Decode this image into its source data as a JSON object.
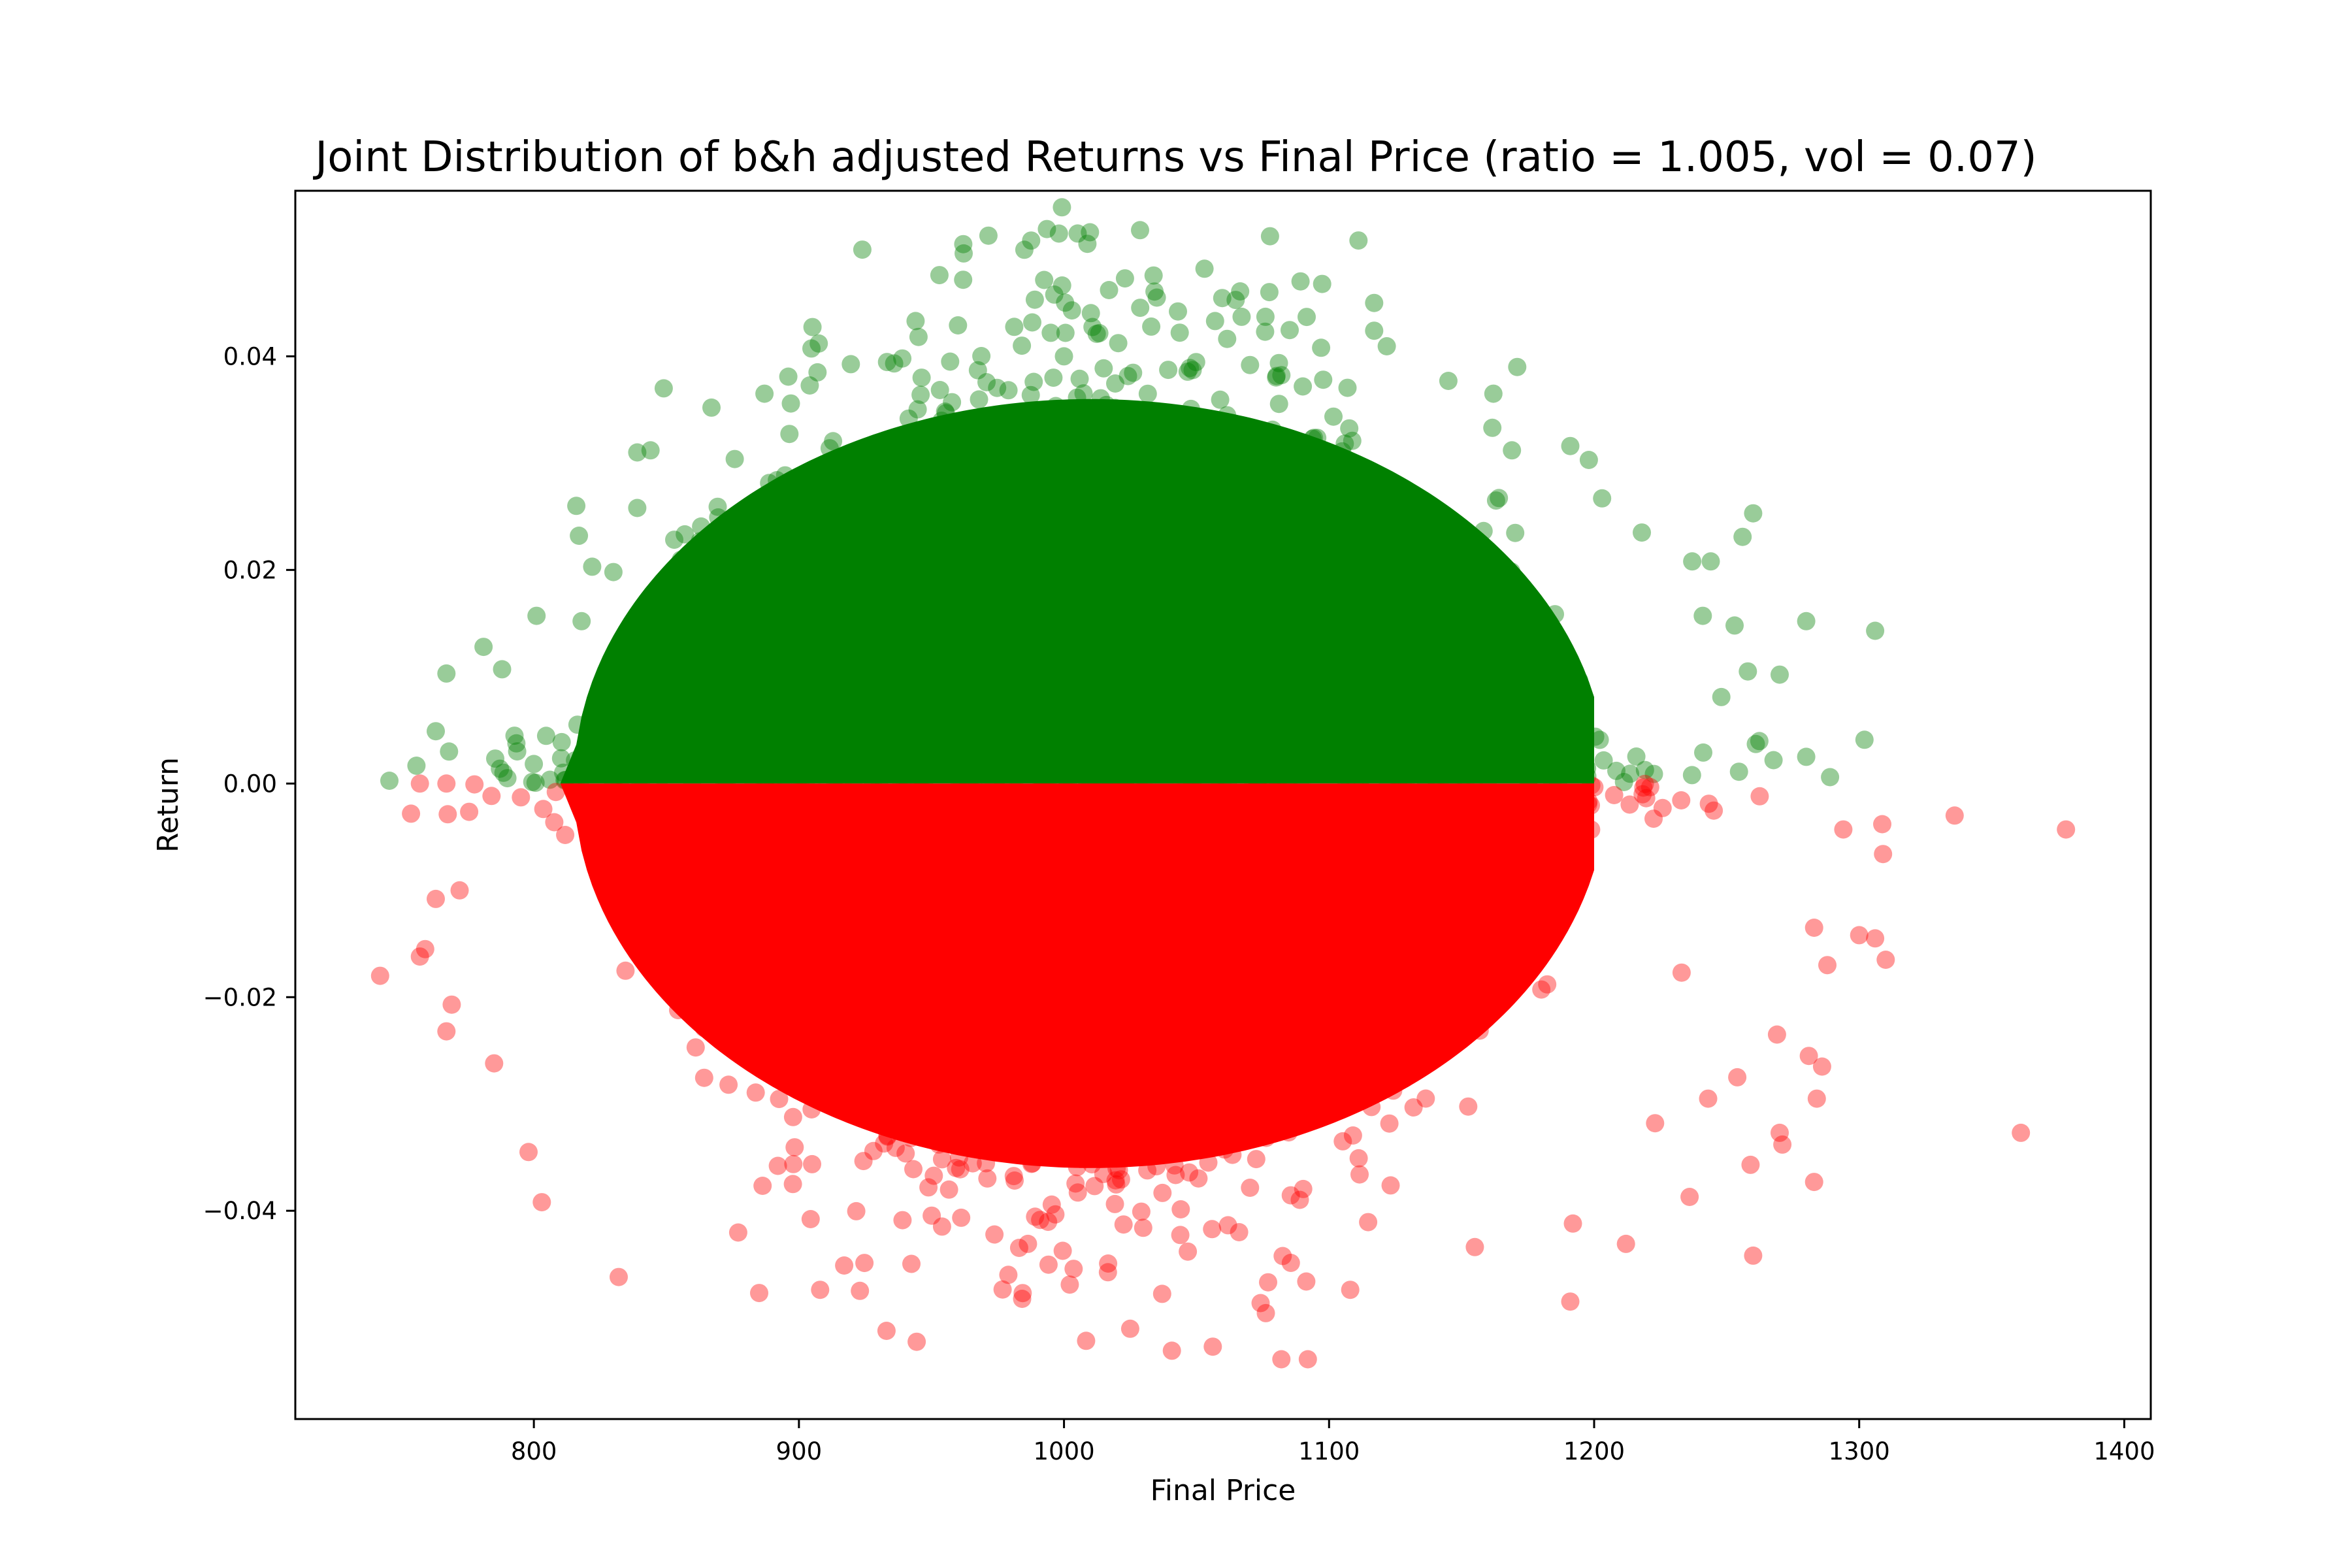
{
  "chart_data": {
    "type": "scatter",
    "title": "Joint Distribution of b&h adjusted Returns vs Final Price (ratio = 1.005, vol = 0.07)",
    "xlabel": "Final Price",
    "ylabel": "Return",
    "xlim": [
      710,
      1410
    ],
    "ylim": [
      -0.0595,
      0.0555
    ],
    "x_ticks": [
      800,
      900,
      1000,
      1100,
      1200,
      1300,
      1400
    ],
    "x_tick_labels": [
      "800",
      "900",
      "1000",
      "1100",
      "1200",
      "1300",
      "1400"
    ],
    "y_ticks": [
      -0.04,
      -0.02,
      0.0,
      0.02,
      0.04
    ],
    "y_tick_labels": [
      "−0.04",
      "−0.02",
      "0.00",
      "0.02",
      "0.04"
    ],
    "grid": false,
    "legend": "none",
    "marker_alpha": 0.4,
    "distribution": {
      "price_center": 1010,
      "price_sd": 80,
      "return_spread": 0.02,
      "positive_color": "#008000",
      "negative_color": "#ff0000"
    },
    "series": [
      {
        "color": "#008000",
        "points": [
          [
            962,
            0.0505
          ],
          [
            1053,
            0.0482
          ],
          [
            953,
            0.0476
          ],
          [
            1023,
            0.0473
          ],
          [
            1017,
            0.0462
          ],
          [
            1035,
            0.0455
          ],
          [
            989,
            0.0453
          ],
          [
            1117,
            0.045
          ],
          [
            1003,
            0.0443
          ],
          [
            1043,
            0.0442
          ],
          [
            1067,
            0.0437
          ],
          [
            1076,
            0.0437
          ],
          [
            944,
            0.0433
          ],
          [
            1057,
            0.0433
          ],
          [
            960,
            0.0429
          ],
          [
            1117,
            0.0424
          ],
          [
            995,
            0.0422
          ],
          [
            1097,
            0.0408
          ],
          [
            939,
            0.0398
          ],
          [
            1171,
            0.039
          ],
          [
            907,
            0.0385
          ],
          [
            896,
            0.0381
          ],
          [
            1145,
            0.0377
          ],
          [
            849,
            0.037
          ],
          [
            867,
            0.0352
          ],
          [
            887,
            0.0365
          ],
          [
            1162,
            0.0365
          ],
          [
            839,
            0.031
          ],
          [
            844,
            0.0312
          ],
          [
            1169,
            0.0312
          ],
          [
            1191,
            0.0316
          ],
          [
            1198,
            0.0303
          ],
          [
            816,
            0.026
          ],
          [
            839,
            0.0258
          ],
          [
            1163,
            0.0265
          ],
          [
            1203,
            0.0267
          ],
          [
            1260,
            0.0253
          ],
          [
            1256,
            0.0231
          ],
          [
            1218,
            0.0235
          ],
          [
            817,
            0.0232
          ],
          [
            822,
            0.0203
          ],
          [
            830,
            0.0198
          ],
          [
            1244,
            0.0208
          ],
          [
            1237,
            0.0208
          ],
          [
            781,
            0.0128
          ],
          [
            788,
            0.0107
          ],
          [
            767,
            0.0103
          ],
          [
            801,
            0.0157
          ],
          [
            818,
            0.0152
          ],
          [
            1280,
            0.0152
          ],
          [
            1306,
            0.0143
          ],
          [
            1241,
            0.0157
          ],
          [
            1253,
            0.0148
          ],
          [
            1270,
            0.0102
          ],
          [
            1258,
            0.0105
          ],
          [
            1302,
            0.0041
          ],
          [
            1289,
            0.0006
          ],
          [
            763,
            0.0049
          ],
          [
            768,
            0.003
          ],
          [
            790,
            0.0005
          ],
          [
            1280,
            0.0025
          ],
          [
            1261,
            0.0037
          ],
          [
            1248,
            0.0081
          ]
        ]
      },
      {
        "color": "#ff0000",
        "points": [
          [
            742,
            -0.018
          ],
          [
            757,
            -0.0162
          ],
          [
            759,
            -0.0155
          ],
          [
            763,
            -0.0108
          ],
          [
            767,
            -0.0232
          ],
          [
            769,
            -0.0207
          ],
          [
            772,
            -0.01
          ],
          [
            757,
            0.0
          ],
          [
            767,
            0.0
          ],
          [
            785,
            -0.0262
          ],
          [
            803,
            -0.0392
          ],
          [
            798,
            -0.0345
          ],
          [
            832,
            -0.0462
          ],
          [
            885,
            -0.0477
          ],
          [
            908,
            -0.0474
          ],
          [
            923,
            -0.0475
          ],
          [
            979,
            -0.046
          ],
          [
            1082,
            -0.0539
          ],
          [
            1092,
            -0.0539
          ],
          [
            1191,
            -0.0485
          ],
          [
            1108,
            -0.0474
          ],
          [
            1077,
            -0.0467
          ],
          [
            1212,
            -0.0431
          ],
          [
            1260,
            -0.0442
          ],
          [
            1155,
            -0.0434
          ],
          [
            1236,
            -0.0387
          ],
          [
            1283,
            -0.0373
          ],
          [
            1361,
            -0.0327
          ],
          [
            1378,
            -0.0043
          ],
          [
            1336,
            -0.003
          ],
          [
            1310,
            -0.0165
          ],
          [
            1309,
            -0.0066
          ],
          [
            1294,
            -0.0043
          ],
          [
            1300,
            -0.0142
          ],
          [
            1306,
            -0.0145
          ],
          [
            1283,
            -0.0135
          ],
          [
            1288,
            -0.017
          ],
          [
            1281,
            -0.0255
          ],
          [
            1286,
            -0.0265
          ],
          [
            1284,
            -0.0295
          ],
          [
            1270,
            -0.0327
          ],
          [
            1271,
            -0.0338
          ],
          [
            1269,
            -0.0235
          ],
          [
            1259,
            -0.0357
          ],
          [
            1254,
            -0.0275
          ],
          [
            1243,
            -0.0295
          ],
          [
            1233,
            -0.0177
          ],
          [
            1223,
            -0.0318
          ],
          [
            1192,
            -0.0412
          ]
        ]
      }
    ]
  }
}
